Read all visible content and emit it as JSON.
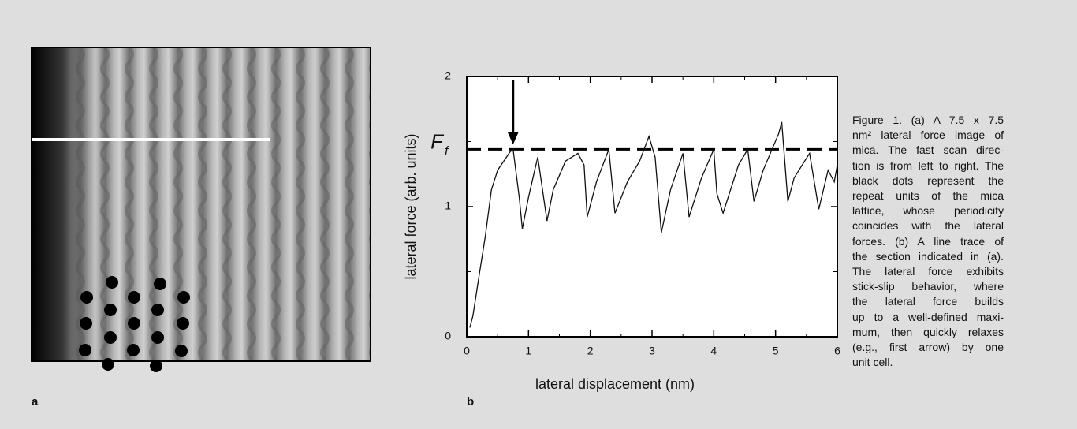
{
  "panel_labels": [
    "a",
    "b"
  ],
  "caption": [
    "Figure 1. (a) A 7.5 x 7.5",
    "nm² lateral force image of",
    "mica. The fast scan direc-",
    "tion is from left to right. The",
    "black dots represent the",
    "repeat units of the mica",
    "lattice, whose periodicity",
    "coincides with the lateral",
    "forces. (b) A line trace of",
    "the section indicated in (a).",
    "The lateral force exhibits",
    "stick-slip behavior, where",
    "the lateral force builds",
    "up to a well-defined maxi-",
    "mum, then quickly relaxes",
    "(e.g., first arrow) by one",
    "unit cell."
  ],
  "chart_data": {
    "type": "line",
    "x_label": "lateral displacement (nm)",
    "y_label": "lateral force (arb. units)",
    "x": [
      0.05,
      0.1,
      0.2,
      0.3,
      0.4,
      0.5,
      0.6,
      0.7,
      0.75,
      0.85,
      0.9,
      1.0,
      1.1,
      1.15,
      1.3,
      1.4,
      1.6,
      1.8,
      1.9,
      1.95,
      2.1,
      2.3,
      2.4,
      2.6,
      2.8,
      2.95,
      3.05,
      3.15,
      3.3,
      3.5,
      3.6,
      3.8,
      4.0,
      4.05,
      4.15,
      4.4,
      4.55,
      4.65,
      4.8,
      5.05,
      5.1,
      5.2,
      5.3,
      5.55,
      5.7,
      5.85,
      5.95,
      6.0
    ],
    "values": [
      0.07,
      0.16,
      0.47,
      0.77,
      1.13,
      1.28,
      1.35,
      1.42,
      1.44,
      1.07,
      0.83,
      1.07,
      1.28,
      1.38,
      0.89,
      1.13,
      1.35,
      1.41,
      1.32,
      0.92,
      1.19,
      1.44,
      0.95,
      1.19,
      1.35,
      1.54,
      1.38,
      0.8,
      1.13,
      1.41,
      0.92,
      1.22,
      1.44,
      1.1,
      0.95,
      1.32,
      1.44,
      1.04,
      1.28,
      1.56,
      1.65,
      1.04,
      1.22,
      1.41,
      0.98,
      1.28,
      1.19,
      1.32
    ],
    "color": "#111111",
    "xlim": [
      0,
      6
    ],
    "xticks": [
      0,
      1,
      2,
      3,
      4,
      5,
      6
    ],
    "xminor": [
      0.5,
      1.5,
      2.5,
      3.5,
      4.5,
      5.5
    ],
    "ylim": [
      0,
      2
    ],
    "yticks": [
      0,
      1,
      2
    ],
    "yminor": [
      0.5,
      1.5
    ],
    "threshold": {
      "value": 1.44,
      "label": "F",
      "subscript": "f"
    },
    "arrow_x": 0.75
  }
}
